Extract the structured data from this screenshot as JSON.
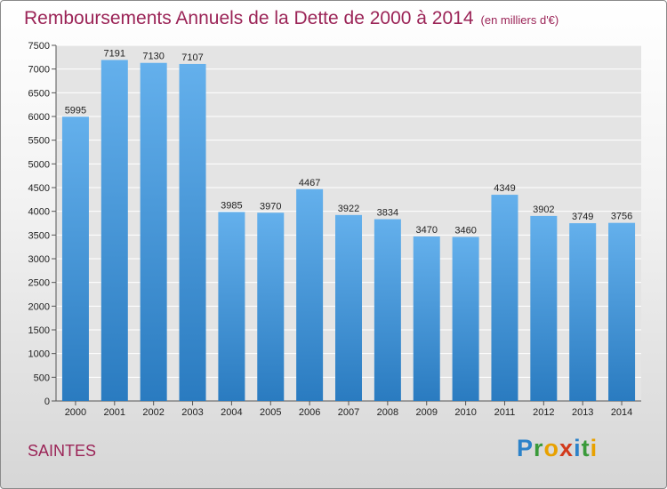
{
  "header": {
    "title": "Remboursements Annuels de la Dette de 2000 à 2014",
    "subtitle": "(en milliers d'€)"
  },
  "footer": {
    "city": "SAINTES",
    "logo_letters": [
      "P",
      "r",
      "o",
      "x",
      "i",
      "t",
      "i"
    ]
  },
  "chart_data": {
    "type": "bar",
    "title": "Remboursements Annuels de la Dette de 2000 à 2014",
    "subtitle": "(en milliers d'€)",
    "categories": [
      "2000",
      "2001",
      "2002",
      "2003",
      "2004",
      "2005",
      "2006",
      "2007",
      "2008",
      "2009",
      "2010",
      "2011",
      "2012",
      "2013",
      "2014"
    ],
    "values": [
      5995,
      7191,
      7130,
      7107,
      3985,
      3970,
      4467,
      3922,
      3834,
      3470,
      3460,
      4349,
      3902,
      3749,
      3756
    ],
    "ylim": [
      0,
      7500
    ],
    "yticks": [
      0,
      500,
      1000,
      1500,
      2000,
      2500,
      3000,
      3500,
      4000,
      4500,
      5000,
      5500,
      6000,
      6500,
      7000,
      7500
    ],
    "grid": true,
    "bar_color": "#4d9ee0",
    "grid_color": "#ffffff"
  }
}
